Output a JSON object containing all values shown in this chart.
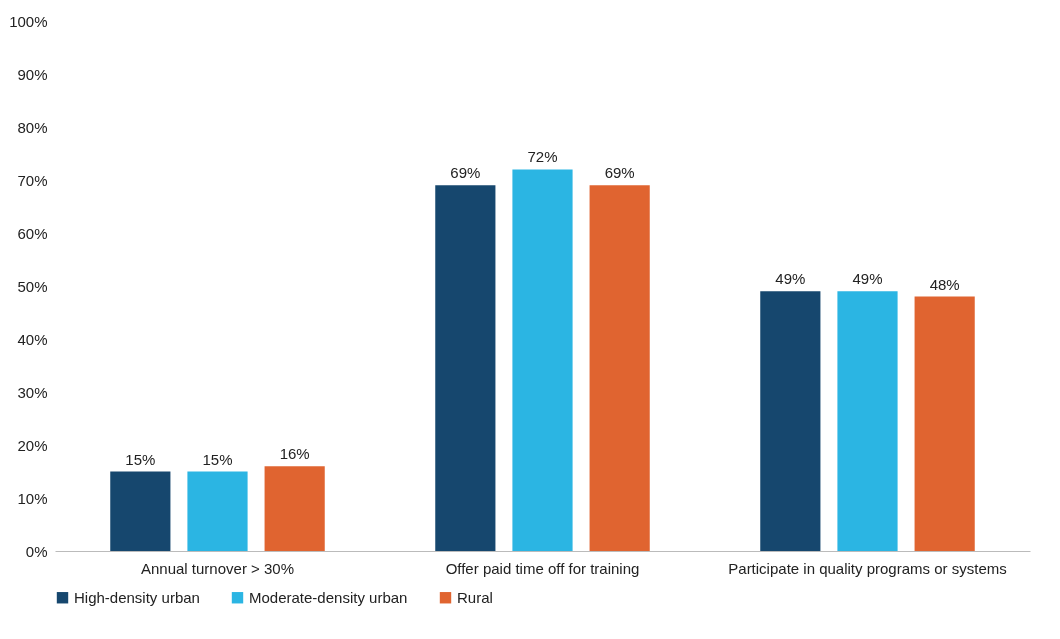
{
  "chart_data": {
    "type": "bar",
    "categories": [
      "Annual turnover > 30%",
      "Offer paid time off for training",
      "Participate in quality programs or systems"
    ],
    "series": [
      {
        "name": "High-density urban",
        "color": "#16476e",
        "values": [
          15,
          69,
          49
        ],
        "value_labels": [
          "15%",
          "69%",
          "49%"
        ]
      },
      {
        "name": "Moderate-density urban",
        "color": "#2bb5e3",
        "values": [
          15,
          72,
          49
        ],
        "value_labels": [
          "15%",
          "72%",
          "49%"
        ]
      },
      {
        "name": "Rural",
        "color": "#e06430",
        "values": [
          16,
          69,
          48
        ],
        "value_labels": [
          "16%",
          "69%",
          "48%"
        ]
      }
    ],
    "ylim": [
      0,
      100
    ],
    "yticks": [
      {
        "value": 0,
        "label": "0%"
      },
      {
        "value": 10,
        "label": "10%"
      },
      {
        "value": 20,
        "label": "20%"
      },
      {
        "value": 30,
        "label": "30%"
      },
      {
        "value": 40,
        "label": "40%"
      },
      {
        "value": 50,
        "label": "50%"
      },
      {
        "value": 60,
        "label": "60%"
      },
      {
        "value": 70,
        "label": "70%"
      },
      {
        "value": 80,
        "label": "80%"
      },
      {
        "value": 90,
        "label": "90%"
      },
      {
        "value": 100,
        "label": "100%"
      }
    ],
    "grid": false,
    "legend": "bottom"
  }
}
